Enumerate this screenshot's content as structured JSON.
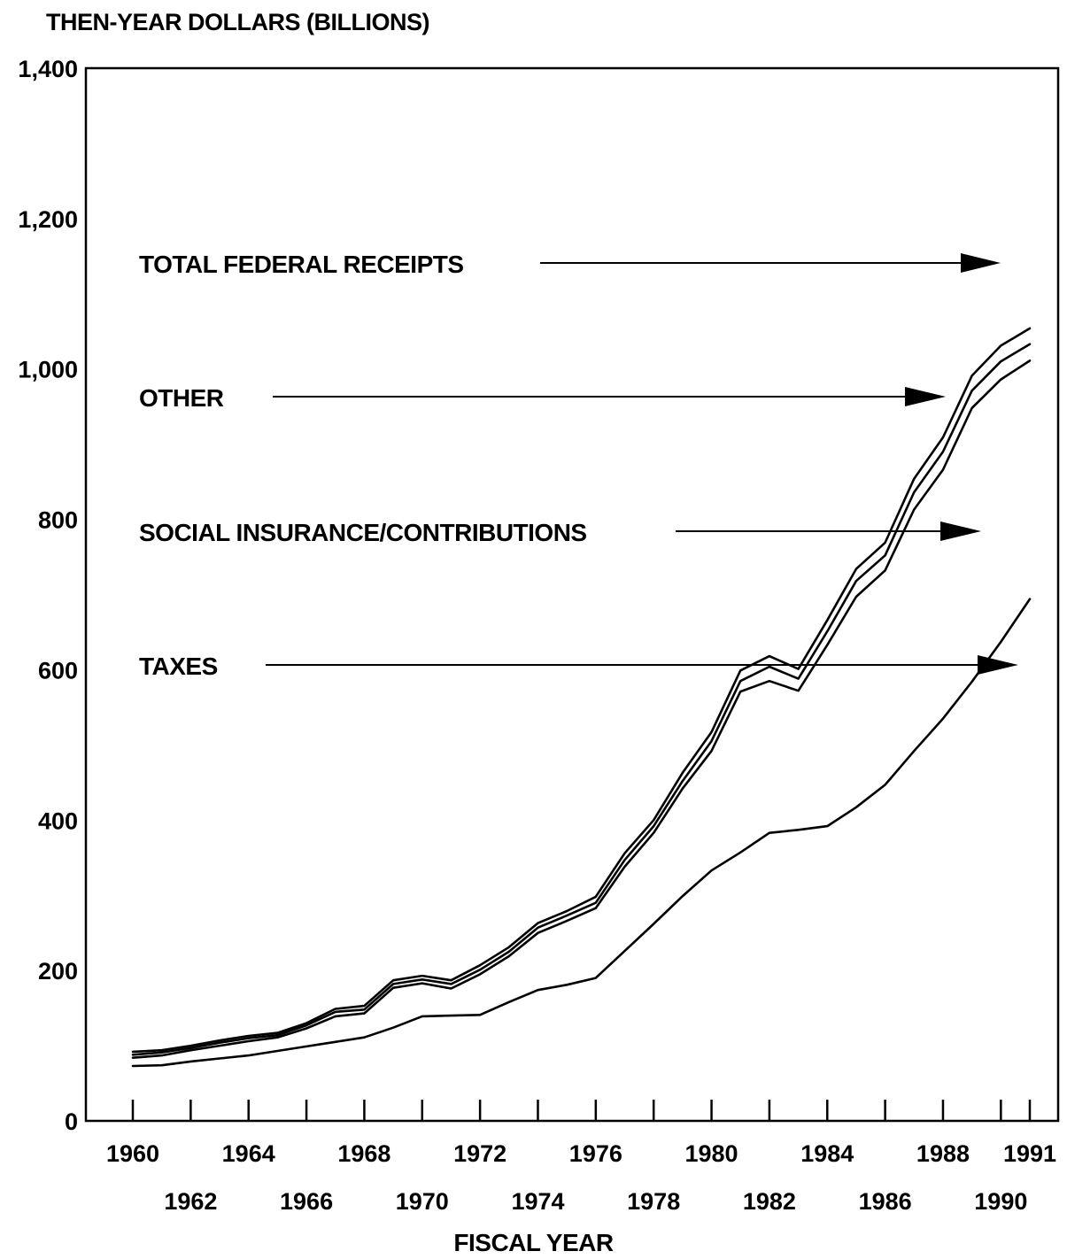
{
  "chart_data": {
    "type": "line",
    "ylabel": "THEN-YEAR DOLLARS (BILLIONS)",
    "xlabel": "FISCAL YEAR",
    "ylim": [
      0,
      1400
    ],
    "yticks": [
      "0",
      "200",
      "400",
      "600",
      "800",
      "1,000",
      "1,200",
      "1,400"
    ],
    "xticks_top": [
      "1960",
      "1964",
      "1968",
      "1972",
      "1976",
      "1980",
      "1984",
      "1988",
      "1991"
    ],
    "xticks_bottom": [
      "1962",
      "1966",
      "1970",
      "1974",
      "1978",
      "1982",
      "1986",
      "1990"
    ],
    "x": [
      1960,
      1961,
      1962,
      1963,
      1964,
      1965,
      1966,
      1967,
      1968,
      1969,
      1970,
      1971,
      1972,
      1973,
      1974,
      1975,
      1976,
      1977,
      1978,
      1979,
      1980,
      1981,
      1982,
      1983,
      1984,
      1985,
      1986,
      1987,
      1988,
      1989,
      1990,
      1991
    ],
    "series": [
      {
        "name": "TOTAL FEDERAL RECEIPTS",
        "values": [
          92,
          94,
          100,
          107,
          113,
          117,
          130,
          149,
          153,
          187,
          193,
          187,
          207,
          231,
          263,
          279,
          298,
          356,
          400,
          463,
          517,
          599,
          618,
          601,
          666,
          734,
          769,
          854,
          909,
          991,
          1031,
          1054
        ]
      },
      {
        "name": "OTHER",
        "values": [
          88,
          91,
          97,
          104,
          110,
          114,
          127,
          145,
          148,
          182,
          188,
          182,
          201,
          225,
          257,
          273,
          290,
          347,
          392,
          452,
          505,
          585,
          604,
          588,
          651,
          718,
          752,
          836,
          890,
          971,
          1010,
          1033
        ]
      },
      {
        "name": "SOCIAL INSURANCE/CONTRIBUTIONS",
        "values": [
          84,
          87,
          94,
          100,
          106,
          111,
          123,
          139,
          143,
          177,
          183,
          176,
          195,
          219,
          250,
          266,
          283,
          338,
          383,
          442,
          492,
          571,
          585,
          572,
          633,
          697,
          732,
          813,
          866,
          948,
          986,
          1011
        ]
      },
      {
        "name": "TAXES",
        "values": [
          73,
          74,
          79,
          83,
          87,
          93,
          99,
          105,
          111,
          124,
          139,
          140,
          141,
          158,
          174,
          181,
          190,
          226,
          262,
          299,
          333,
          357,
          383,
          387,
          392,
          417,
          447,
          492,
          535,
          584,
          637,
          694
        ]
      }
    ],
    "annotations": [
      {
        "text": "TOTAL FEDERAL RECEIPTS"
      },
      {
        "text": "OTHER"
      },
      {
        "text": "SOCIAL INSURANCE/CONTRIBUTIONS"
      },
      {
        "text": "TAXES"
      }
    ],
    "grid": false,
    "legend": "none"
  }
}
